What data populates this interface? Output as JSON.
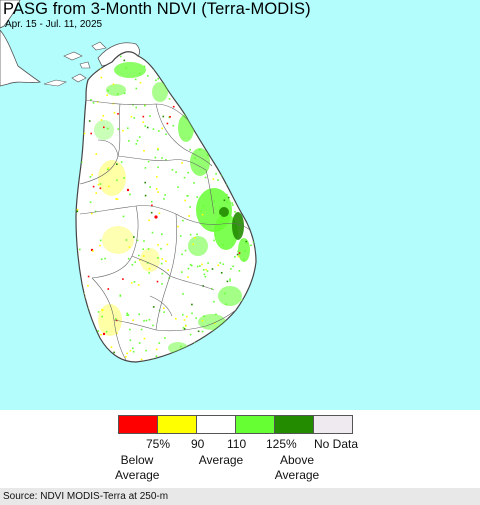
{
  "map": {
    "title": "PASG from 3-Month NDVI (Terra-MODIS)",
    "subtitle": "Apr. 15 - Jul. 11, 2025",
    "colors": {
      "water": "#b3fdfd",
      "land": "#ffffff",
      "boundary": "#555555",
      "below_strong": "#ff0000",
      "below": "#ffff00",
      "normal": "#ffffff",
      "above": "#66ff33",
      "above_strong": "#228b00",
      "no_data": "#eeeaef"
    }
  },
  "legend": {
    "ticks": [
      "75%",
      "90",
      "110",
      "125%",
      "No Data"
    ],
    "categories": [
      {
        "line1": "Below",
        "line2": "Average"
      },
      {
        "line1": "Average",
        "line2": ""
      },
      {
        "line1": "Above",
        "line2": "Average"
      }
    ]
  },
  "footer": {
    "source": "Source: NDVI MODIS-Terra at 250-m"
  }
}
